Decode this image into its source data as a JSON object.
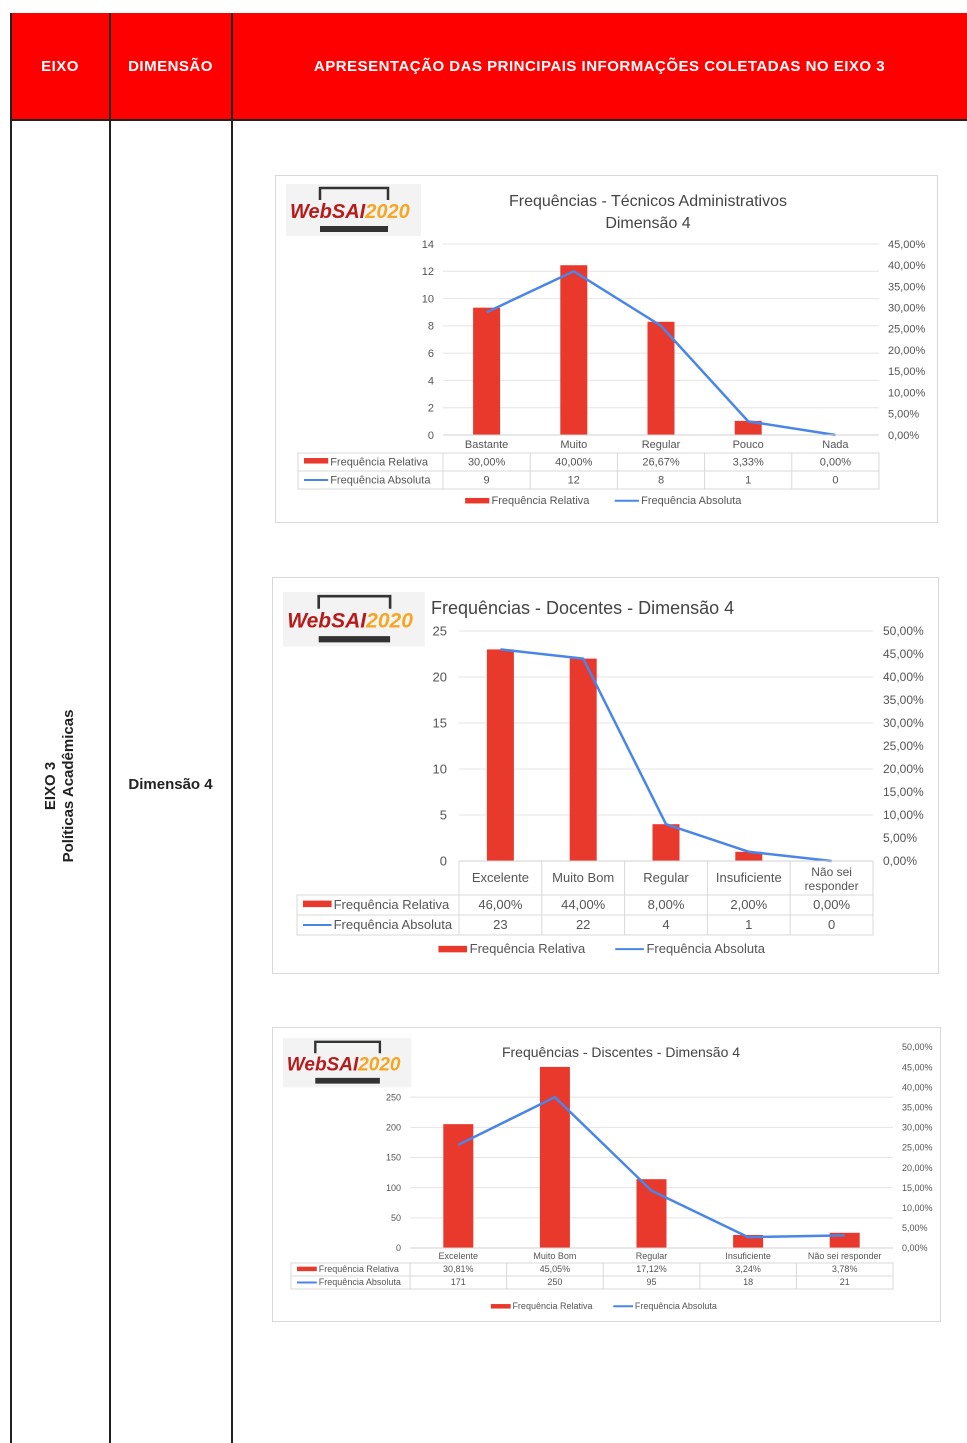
{
  "header": {
    "eixo": "EIXO",
    "dimensao": "DIMENSÃO",
    "main": "APRESENTAÇÃO DAS PRINCIPAIS INFORMAÇÕES COLETADAS NO EIXO 3"
  },
  "row": {
    "eixo_line1": "EIXO 3",
    "eixo_line2": "Políticas Acadêmicas",
    "dimensao": "Dimensão 4"
  },
  "logo": {
    "part1": "WebSAI",
    "part2": "2020",
    "color1": "#b71c1c",
    "color2": "#f5a623"
  },
  "colors": {
    "bar": "#e8392c",
    "line": "#4a86e8",
    "border": "#d9d9d9"
  },
  "chart_data": [
    {
      "type": "bar",
      "title_line1": "Frequências - Técnicos Administrativos",
      "title_line2": "Dimensão 4",
      "categories": [
        "Bastante",
        "Muito",
        "Regular",
        "Pouco",
        "Nada"
      ],
      "series": [
        {
          "name": "Frequência Relativa",
          "kind": "bar",
          "values": [
            30.0,
            40.0,
            26.67,
            3.33,
            0.0
          ],
          "labels": [
            "30,00%",
            "40,00%",
            "26,67%",
            "3,33%",
            "0,00%"
          ]
        },
        {
          "name": "Frequência Absoluta",
          "kind": "line",
          "values": [
            9,
            12,
            8,
            1,
            0
          ],
          "labels": [
            "9",
            "12",
            "8",
            "1",
            "0"
          ]
        }
      ],
      "left_ticks": [
        "0",
        "2",
        "4",
        "6",
        "8",
        "10",
        "12",
        "14"
      ],
      "right_ticks": [
        "0,00%",
        "5,00%",
        "10,00%",
        "15,00%",
        "20,00%",
        "25,00%",
        "30,00%",
        "35,00%",
        "40,00%",
        "45,00%"
      ],
      "ylim_left": [
        0,
        14
      ],
      "ylim_right": [
        0,
        45
      ],
      "legend": [
        "Frequência Relativa",
        "Frequência Absoluta"
      ]
    },
    {
      "type": "bar",
      "title_line1": "Frequências - Docentes - Dimensão 4",
      "title_line2": "",
      "categories": [
        "Excelente",
        "Muito Bom",
        "Regular",
        "Insuficiente",
        "Não sei responder"
      ],
      "series": [
        {
          "name": "Frequência Relativa",
          "kind": "bar",
          "values": [
            46.0,
            44.0,
            8.0,
            2.0,
            0.0
          ],
          "labels": [
            "46,00%",
            "44,00%",
            "8,00%",
            "2,00%",
            "0,00%"
          ]
        },
        {
          "name": "Frequência Absoluta",
          "kind": "line",
          "values": [
            23,
            22,
            4,
            1,
            0
          ],
          "labels": [
            "23",
            "22",
            "4",
            "1",
            "0"
          ]
        }
      ],
      "left_ticks": [
        "0",
        "5",
        "10",
        "15",
        "20",
        "25"
      ],
      "right_ticks": [
        "0,00%",
        "5,00%",
        "10,00%",
        "15,00%",
        "20,00%",
        "25,00%",
        "30,00%",
        "35,00%",
        "40,00%",
        "45,00%",
        "50,00%"
      ],
      "ylim_left": [
        0,
        25
      ],
      "ylim_right": [
        0,
        50
      ],
      "legend": [
        "Frequência Relativa",
        "Frequência Absoluta"
      ]
    },
    {
      "type": "bar",
      "title_line1": "Frequências - Discentes - Dimensão 4",
      "title_line2": "",
      "categories": [
        "Excelente",
        "Muito Bom",
        "Regular",
        "Insuficiente",
        "Não sei responder"
      ],
      "series": [
        {
          "name": "Frequência Relativa",
          "kind": "bar",
          "values": [
            30.81,
            45.05,
            17.12,
            3.24,
            3.78
          ],
          "labels": [
            "30,81%",
            "45,05%",
            "17,12%",
            "3,24%",
            "3,78%"
          ]
        },
        {
          "name": "Frequência Absoluta",
          "kind": "line",
          "values": [
            171,
            250,
            95,
            18,
            21
          ],
          "labels": [
            "171",
            "250",
            "95",
            "18",
            "21"
          ]
        }
      ],
      "left_ticks": [
        "0",
        "50",
        "100",
        "150",
        "200",
        "250"
      ],
      "right_ticks": [
        "0,00%",
        "5,00%",
        "10,00%",
        "15,00%",
        "20,00%",
        "25,00%",
        "30,00%",
        "35,00%",
        "40,00%",
        "45,00%",
        "50,00%"
      ],
      "ylim_left": [
        0,
        300
      ],
      "ylim_right": [
        0,
        50
      ],
      "legend": [
        "Frequência Relativa",
        "Frequência Absoluta"
      ]
    }
  ]
}
